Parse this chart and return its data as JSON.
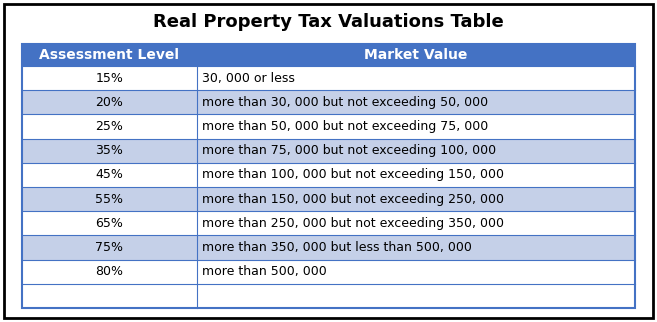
{
  "title": "Real Property Tax Valuations Table",
  "col_headers": [
    "Assessment Level",
    "Market Value"
  ],
  "rows": [
    [
      "15%",
      "30, 000 or less"
    ],
    [
      "20%",
      "more than 30, 000 but not exceeding 50, 000"
    ],
    [
      "25%",
      "more than 50, 000 but not exceeding 75, 000"
    ],
    [
      "35%",
      "more than 75, 000 but not exceeding 100, 000"
    ],
    [
      "45%",
      "more than 100, 000 but not exceeding 150, 000"
    ],
    [
      "55%",
      "more than 150, 000 but not exceeding 250, 000"
    ],
    [
      "65%",
      "more than 250, 000 but not exceeding 350, 000"
    ],
    [
      "75%",
      "more than 350, 000 but less than 500, 000"
    ],
    [
      "80%",
      "more than 500, 000"
    ]
  ],
  "header_bg": "#4472C4",
  "header_text": "#FFFFFF",
  "row_even_bg": "#FFFFFF",
  "row_odd_bg": "#C5D0E8",
  "row_text": "#000000",
  "table_border": "#4472C4",
  "title_fontsize": 13,
  "header_fontsize": 10,
  "row_fontsize": 9,
  "bg_color": "#FFFFFF"
}
